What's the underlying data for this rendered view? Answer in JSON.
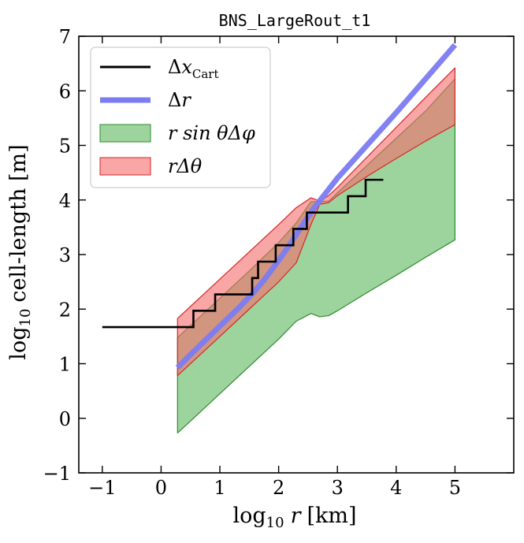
{
  "chart_data": {
    "type": "area",
    "title": "BNS_LargeRout_t1",
    "xlabel": "log10 r [km]",
    "ylabel": "log10 cell-length [m]",
    "xlabel_parts": {
      "log": "log",
      "sub": "10",
      "var": "r",
      "unit": "[km]"
    },
    "ylabel_parts": {
      "log": "log",
      "sub": "10",
      "rest": "cell-length [m]"
    },
    "xlim": [
      -1.4,
      6.0
    ],
    "ylim": [
      -1,
      7
    ],
    "xticks": [
      -1,
      0,
      1,
      2,
      3,
      4,
      5
    ],
    "yticks": [
      -1,
      0,
      1,
      2,
      3,
      4,
      5,
      6,
      7
    ],
    "xtick_labels": [
      "−1",
      "0",
      "1",
      "2",
      "3",
      "4",
      "5"
    ],
    "ytick_labels": [
      "−1",
      "0",
      "1",
      "2",
      "3",
      "4",
      "5",
      "6",
      "7"
    ],
    "legend_position": "top-left",
    "series": [
      {
        "name": "Δx_Cart",
        "kind": "step",
        "color": "#000000",
        "x": [
          -1.0,
          0.55,
          0.55,
          0.92,
          0.92,
          1.55,
          1.55,
          1.65,
          1.65,
          1.95,
          1.95,
          2.25,
          2.25,
          2.48,
          2.48,
          3.18,
          3.18,
          3.48,
          3.48,
          3.78
        ],
        "y": [
          1.67,
          1.67,
          1.97,
          1.97,
          2.27,
          2.27,
          2.57,
          2.57,
          2.87,
          2.87,
          3.17,
          3.17,
          3.47,
          3.47,
          3.77,
          3.77,
          4.07,
          4.07,
          4.37,
          4.37
        ]
      },
      {
        "name": "Δr",
        "kind": "line",
        "color": "#7b7bf2",
        "x": [
          0.28,
          0.6,
          1.0,
          1.3,
          1.55,
          1.75,
          1.95,
          2.15,
          2.35,
          2.6,
          3.0,
          3.5,
          4.0,
          4.5,
          5.0
        ],
        "y": [
          0.93,
          1.27,
          1.69,
          2.0,
          2.28,
          2.53,
          2.82,
          3.12,
          3.45,
          3.85,
          4.4,
          5.0,
          5.6,
          6.22,
          6.84
        ]
      },
      {
        "name": "r sin θ Δφ",
        "kind": "band",
        "color": "#5cb85c",
        "x": [
          0.28,
          1.0,
          1.5,
          2.0,
          2.3,
          2.55,
          2.7,
          2.85,
          3.0,
          3.5,
          4.0,
          4.5,
          5.0
        ],
        "upper": [
          1.48,
          2.2,
          2.7,
          3.22,
          3.58,
          3.97,
          3.97,
          3.98,
          4.13,
          4.63,
          5.13,
          5.63,
          6.22
        ],
        "lower": [
          -0.27,
          0.45,
          0.95,
          1.45,
          1.78,
          1.92,
          1.86,
          1.88,
          1.97,
          2.3,
          2.62,
          2.95,
          3.27
        ]
      },
      {
        "name": "r Δθ",
        "kind": "band",
        "color": "#f56b6b",
        "x": [
          0.28,
          1.0,
          1.5,
          2.0,
          2.3,
          2.55,
          2.7,
          2.85,
          3.0,
          3.5,
          4.0,
          4.5,
          5.0
        ],
        "upper": [
          1.83,
          2.55,
          3.05,
          3.55,
          3.86,
          4.04,
          3.98,
          4.08,
          4.23,
          4.78,
          5.33,
          5.88,
          6.42
        ],
        "lower": [
          0.78,
          1.5,
          2.0,
          2.5,
          2.85,
          3.55,
          3.92,
          3.95,
          4.08,
          4.43,
          4.76,
          5.08,
          5.38
        ]
      }
    ],
    "legend": [
      {
        "key": "cart",
        "kind": "line",
        "color": "#000000",
        "symbol": "Δ",
        "var": "x",
        "sub": "Cart"
      },
      {
        "key": "dr",
        "kind": "line",
        "color": "#7b7bf2",
        "symbol": "Δ",
        "var": "r",
        "sub": ""
      },
      {
        "key": "phi",
        "kind": "patch",
        "color": "#5cb85c",
        "edge": "#2e8b2e",
        "text": "r sin θΔφ"
      },
      {
        "key": "theta",
        "kind": "patch",
        "color": "#f56b6b",
        "edge": "#d62728",
        "text": "rΔθ"
      }
    ]
  }
}
